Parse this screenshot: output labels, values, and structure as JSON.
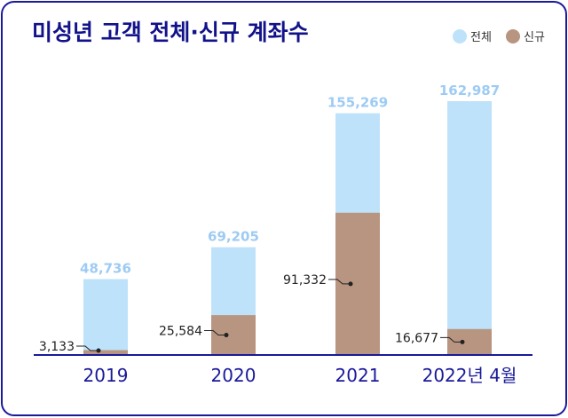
{
  "chart_data": {
    "type": "bar",
    "title": "미성년 고객 전체·신규 계좌수",
    "categories": [
      "2019",
      "2020",
      "2021",
      "2022년 4월"
    ],
    "series": [
      {
        "name": "전체",
        "values": [
          48736,
          69205,
          155269,
          162987
        ],
        "labels": [
          "48,736",
          "69,205",
          "155,269",
          "162,987"
        ],
        "color": "#bfe2fb"
      },
      {
        "name": "신규",
        "values": [
          3133,
          25584,
          91332,
          16677
        ],
        "labels": [
          "3,133",
          "25,584",
          "91,332",
          "16,677"
        ],
        "color": "#b89581"
      }
    ],
    "overlaid": true,
    "ylim": [
      0,
      162987
    ],
    "legend": "top-right",
    "grid": false,
    "colors": {
      "title": "#12128a",
      "axis": "#1a1a9a",
      "frame": "#1a1a9a",
      "total_label": "#9ecbf3"
    }
  }
}
